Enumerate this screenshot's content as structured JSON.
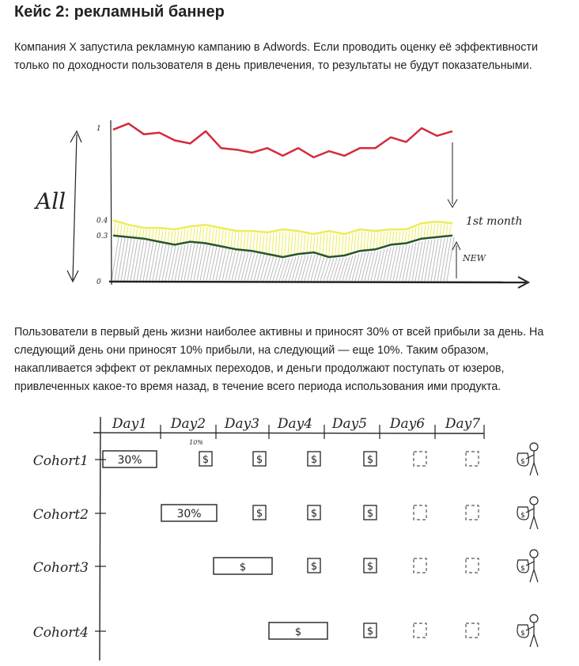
{
  "article": {
    "title": "Кейс 2: рекламный баннер",
    "paragraph1": "Компания X запустила рекламную кампанию в Adwords. Если проводить оценку её эффективности только по доходности пользователя в день привлечения, то результаты не будут показательными.",
    "paragraph2": "Пользователи в первый день жизни наиболее активны и приносят 30% от всей прибыли за день. На следующий день они приносят 10% прибыли, на следующий — еще 10%. Таким образом, накапливается эффект от рекламных переходов, и деньги продолжают поступать от юзеров, привлеченных какое-то время назад, в течение всего периода использования ими продукта."
  },
  "revenue_chart": {
    "label_all": "All",
    "label_1st_month": "1st month",
    "label_new": "NEW",
    "ticks": [
      "1",
      "0.4",
      "0.3",
      "0"
    ],
    "colors": {
      "all": "#d42b3c",
      "month": "#ecec5a",
      "new": "#27552b",
      "ink": "#222222"
    }
  },
  "chart_data": {
    "type": "area",
    "ylim": [
      0,
      1
    ],
    "series": [
      {
        "values": [
          0.99,
          1.03,
          0.96,
          0.97,
          0.92,
          0.9,
          0.98,
          0.87,
          0.86,
          0.84,
          0.87,
          0.82,
          0.87,
          0.81,
          0.85,
          0.82,
          0.87,
          0.87,
          0.94,
          0.91,
          1.0,
          0.95,
          0.98
        ]
      },
      {
        "values": [
          0.4,
          0.37,
          0.35,
          0.35,
          0.34,
          0.36,
          0.37,
          0.35,
          0.33,
          0.33,
          0.32,
          0.34,
          0.33,
          0.31,
          0.33,
          0.31,
          0.34,
          0.33,
          0.34,
          0.34,
          0.38,
          0.39,
          0.38
        ]
      },
      {
        "values": [
          0.3,
          0.29,
          0.28,
          0.26,
          0.24,
          0.26,
          0.25,
          0.23,
          0.21,
          0.2,
          0.18,
          0.16,
          0.18,
          0.19,
          0.16,
          0.17,
          0.2,
          0.21,
          0.24,
          0.25,
          0.28,
          0.29,
          0.3
        ]
      }
    ]
  },
  "cohort_chart": {
    "days": [
      "Day 1",
      "Day 2",
      "Day 3",
      "Day 4",
      "Day 5",
      "Day 6",
      "Day 7"
    ],
    "cohorts": [
      "Cohort 1",
      "Cohort 2",
      "Cohort 3",
      "Cohort 4"
    ],
    "first_day_label": "30%",
    "second_day_note": "10%",
    "dollar": "$",
    "colors": {
      "ink": "#222222",
      "dashed": "#555555"
    }
  }
}
